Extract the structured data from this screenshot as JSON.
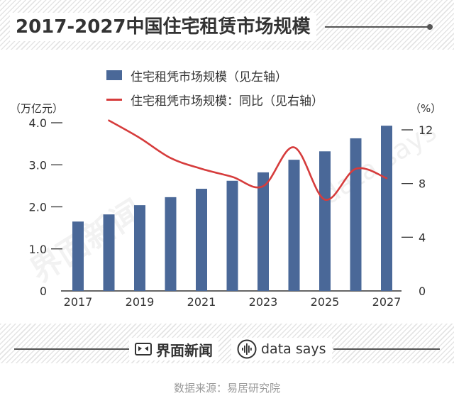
{
  "chart_data": {
    "type": "bar",
    "title": "2017-2027中国住宅租赁市场规模",
    "categories": [
      "2017",
      "2018",
      "2019",
      "2020",
      "2021",
      "2022",
      "2023",
      "2024",
      "2025",
      "2026",
      "2027"
    ],
    "series": [
      {
        "name": "住宅租凭市场规模（见左轴）",
        "type": "bar",
        "axis": "left",
        "color": "#4a6898",
        "values": [
          1.65,
          1.82,
          2.04,
          2.23,
          2.43,
          2.62,
          2.82,
          3.12,
          3.32,
          3.63,
          3.93
        ]
      },
      {
        "name": "住宅租凭市场规模：同比（见右轴）",
        "type": "line",
        "axis": "right",
        "color": "#d63c3c",
        "values": [
          null,
          12.7,
          11.4,
          9.9,
          9.1,
          8.5,
          7.8,
          10.7,
          6.8,
          9.1,
          8.4
        ]
      }
    ],
    "y_left": {
      "label": "（万亿元）",
      "range": [
        0,
        4
      ],
      "ticks": [
        0,
        1,
        2,
        3,
        4
      ],
      "tick_labels": [
        "0",
        "1.0",
        "2.0",
        "3.0",
        "4.0"
      ]
    },
    "y_right": {
      "label": "（%）",
      "range": [
        0,
        12
      ],
      "ticks": [
        0,
        4,
        8,
        12
      ],
      "tick_labels": [
        "0",
        "4",
        "8",
        "12"
      ]
    },
    "x_tick_labels": [
      "2017",
      "2019",
      "2021",
      "2023",
      "2025",
      "2027"
    ],
    "grid": false,
    "legend_position": "top"
  },
  "footer": {
    "brand": "界面新闻",
    "brand_icon": "jiemian-logo-icon",
    "brand2": "data says",
    "brand2_icon": "data-says-logo-icon",
    "source": "数据来源：易居研究院"
  },
  "watermarks": [
    "界面新闻",
    "data says"
  ]
}
